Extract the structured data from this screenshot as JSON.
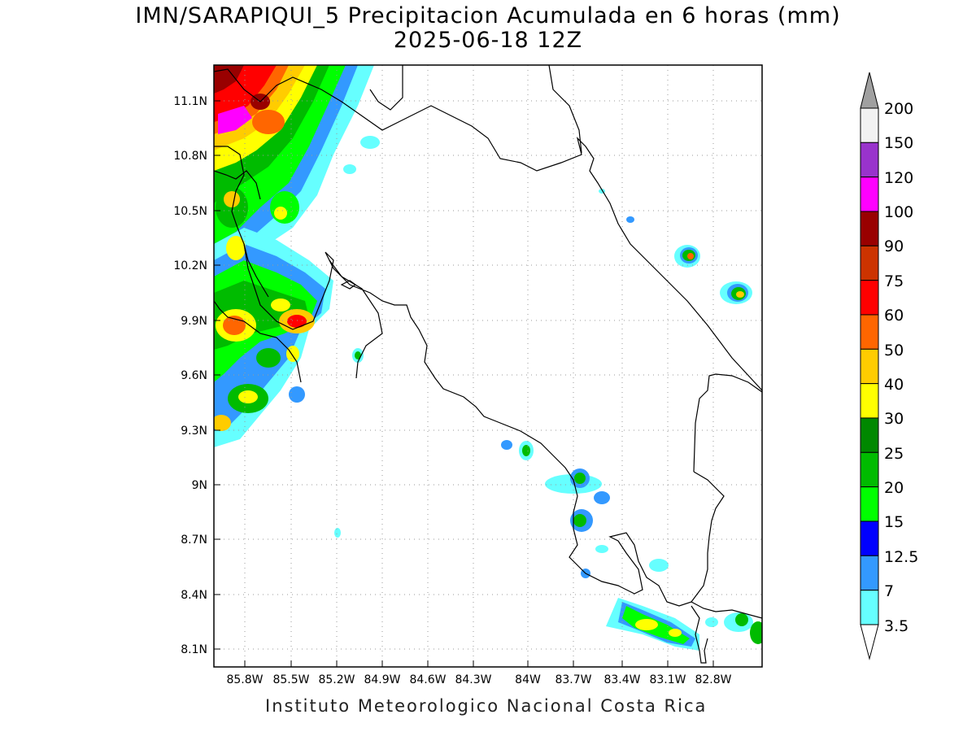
{
  "title": {
    "line1": "IMN/SARAPIQUI_5 Precipitacion Acumulada en 6 horas (mm)",
    "line2": "2025-06-18 12Z"
  },
  "footer": "Instituto Meteorologico Nacional Costa Rica",
  "map": {
    "lon_labels": [
      "85.8W",
      "85.5W",
      "85.2W",
      "84.9W",
      "84.6W",
      "84.3W",
      "84W",
      "83.7W",
      "83.4W",
      "83.1W",
      "82.8W"
    ],
    "lat_labels": [
      "11.1N",
      "10.8N",
      "10.5N",
      "10.2N",
      "9.9N",
      "9.6N",
      "9.3N",
      "9N",
      "8.7N",
      "8.4N",
      "8.1N"
    ]
  },
  "colorbar": {
    "labels": [
      "200",
      "150",
      "120",
      "100",
      "90",
      "75",
      "60",
      "50",
      "40",
      "30",
      "25",
      "20",
      "15",
      "12.5",
      "7",
      "3.5"
    ],
    "colors": [
      "#f2f2f2",
      "#9933cc",
      "#ff00ff",
      "#990000",
      "#cc3300",
      "#ff0000",
      "#ff6600",
      "#ffcc00",
      "#ffff00",
      "#008800",
      "#00bb00",
      "#00ff00",
      "#0000ff",
      "#3399ff",
      "#66ffff"
    ],
    "over_color": "#a0a0a0"
  }
}
